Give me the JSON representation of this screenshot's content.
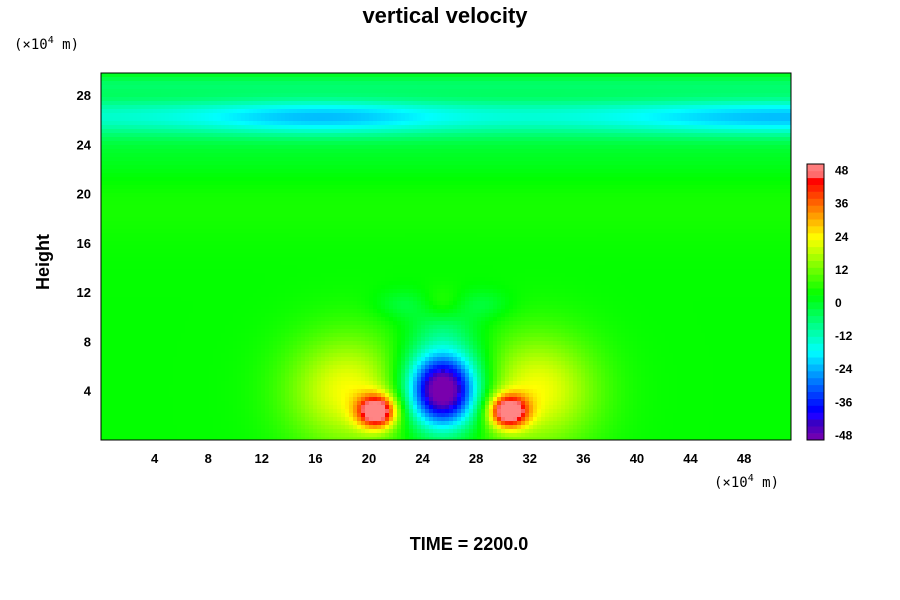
{
  "chart_data": {
    "type": "heatmap",
    "title": "vertical velocity",
    "ylabel": "Height",
    "xlabel": "",
    "x_unit_prefix": "(×10",
    "x_unit_exp": "4",
    "x_unit_suffix": " m)",
    "y_unit_prefix": "(×10",
    "y_unit_exp": "4",
    "y_unit_suffix": " m)",
    "xlim": [
      0,
      51.5
    ],
    "ylim": [
      0,
      29.8
    ],
    "xticks": [
      4,
      8,
      12,
      16,
      20,
      24,
      28,
      32,
      36,
      40,
      44,
      48
    ],
    "yticks": [
      4,
      8,
      12,
      16,
      20,
      24,
      28
    ],
    "colorbar": {
      "range": [
        -50,
        50
      ],
      "ticks": [
        48,
        36,
        24,
        12,
        0,
        -12,
        -24,
        -36,
        -48
      ],
      "levels": 40
    },
    "features": [
      {
        "x": 25.5,
        "y": 3.8,
        "value": -50,
        "label": "central downdraft core"
      },
      {
        "x": 20.3,
        "y": 2.4,
        "value": 40,
        "label": "left updraft"
      },
      {
        "x": 30.7,
        "y": 2.4,
        "value": 40,
        "label": "right updraft"
      }
    ],
    "footer": "TIME = 2200.0"
  }
}
